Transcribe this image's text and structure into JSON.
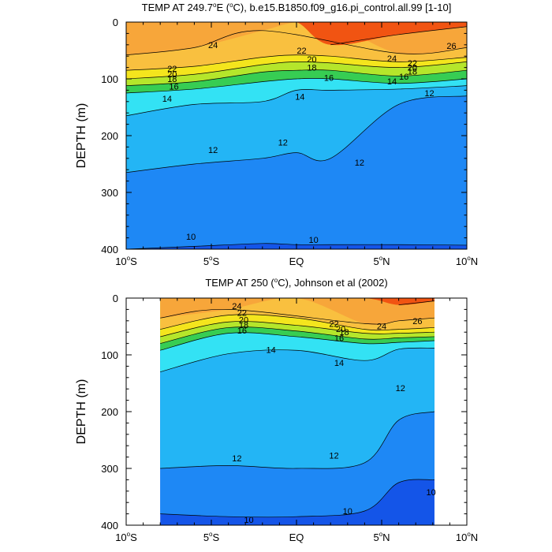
{
  "chart_data": [
    {
      "type": "contour",
      "title_parts": [
        "TEMP AT 249.7",
        "o",
        "E (",
        "o",
        "C), b.e15.B1850.f09_g16.pi_control.all.99 [1-10]"
      ],
      "ylabel": "DEPTH (m)",
      "xlim": [
        -10,
        10
      ],
      "ylim": [
        400,
        0
      ],
      "x_ticks": [
        {
          "value": -10,
          "num": "10",
          "deg": "o",
          "hemi": "S"
        },
        {
          "value": -5,
          "num": "5",
          "deg": "o",
          "hemi": "S"
        },
        {
          "value": 0,
          "num": "EQ",
          "deg": "",
          "hemi": ""
        },
        {
          "value": 5,
          "num": "5",
          "deg": "o",
          "hemi": "N"
        },
        {
          "value": 10,
          "num": "10",
          "deg": "o",
          "hemi": "N"
        }
      ],
      "y_ticks": [
        0,
        100,
        200,
        300,
        400
      ],
      "data_xrange": [
        -10,
        10
      ],
      "levels": [
        26,
        24,
        22,
        20,
        18,
        16,
        14,
        12,
        10
      ],
      "profiles": [
        {
          "x": -10,
          "depths": [
            null,
            58,
            85,
            100,
            112,
            125,
            165,
            265,
            400
          ]
        },
        {
          "x": -6,
          "depths": [
            null,
            45,
            78,
            92,
            105,
            118,
            145,
            250,
            395
          ]
        },
        {
          "x": -2,
          "depths": [
            null,
            15,
            62,
            75,
            88,
            105,
            140,
            240,
            390
          ]
        },
        {
          "x": 0,
          "depths": [
            null,
            null,
            58,
            70,
            85,
            100,
            120,
            230,
            392
          ]
        },
        {
          "x": 2,
          "depths": [
            40,
            null,
            60,
            72,
            85,
            100,
            120,
            240,
            392
          ]
        },
        {
          "x": 6,
          "depths": [
            22,
            55,
            70,
            80,
            95,
            108,
            118,
            145,
            392
          ]
        },
        {
          "x": 10,
          "depths": [
            8,
            45,
            62,
            70,
            85,
            100,
            112,
            130,
            393
          ]
        }
      ],
      "contour_labels": [
        {
          "text": "24",
          "x": -4.9,
          "y": 40
        },
        {
          "text": "22",
          "x": 0.3,
          "y": 50
        },
        {
          "text": "20",
          "x": 0.9,
          "y": 65
        },
        {
          "text": "18",
          "x": 0.9,
          "y": 80
        },
        {
          "text": "16",
          "x": 1.9,
          "y": 98
        },
        {
          "text": "14",
          "x": 0.2,
          "y": 131
        },
        {
          "text": "26",
          "x": 9.1,
          "y": 42
        },
        {
          "text": "24",
          "x": 5.6,
          "y": 64
        },
        {
          "text": "22",
          "x": 6.8,
          "y": 72
        },
        {
          "text": "20",
          "x": 6.8,
          "y": 80
        },
        {
          "text": "18",
          "x": 6.8,
          "y": 87
        },
        {
          "text": "16",
          "x": 6.3,
          "y": 96
        },
        {
          "text": "14",
          "x": 5.6,
          "y": 104
        },
        {
          "text": "12",
          "x": 7.8,
          "y": 125
        },
        {
          "text": "22",
          "x": -7.3,
          "y": 82
        },
        {
          "text": "20",
          "x": -7.3,
          "y": 92
        },
        {
          "text": "18",
          "x": -7.3,
          "y": 100
        },
        {
          "text": "16",
          "x": -7.2,
          "y": 113
        },
        {
          "text": "14",
          "x": -7.6,
          "y": 135
        },
        {
          "text": "12",
          "x": -4.9,
          "y": 225
        },
        {
          "text": "12",
          "x": -0.8,
          "y": 212
        },
        {
          "text": "12",
          "x": 3.7,
          "y": 247
        },
        {
          "text": "10",
          "x": -6.2,
          "y": 378
        },
        {
          "text": "10",
          "x": 1.0,
          "y": 383
        }
      ]
    },
    {
      "type": "contour",
      "title_parts": [
        "TEMP AT 250 (",
        "o",
        "C), Johnson et al (2002)"
      ],
      "ylabel": "DEPTH (m)",
      "xlim": [
        -10,
        10
      ],
      "ylim": [
        400,
        0
      ],
      "x_ticks": [
        {
          "value": -10,
          "num": "10",
          "deg": "o",
          "hemi": "S"
        },
        {
          "value": -5,
          "num": "5",
          "deg": "o",
          "hemi": "S"
        },
        {
          "value": 0,
          "num": "EQ",
          "deg": "",
          "hemi": ""
        },
        {
          "value": 5,
          "num": "5",
          "deg": "o",
          "hemi": "N"
        },
        {
          "value": 10,
          "num": "10",
          "deg": "o",
          "hemi": "N"
        }
      ],
      "y_ticks": [
        0,
        100,
        200,
        300,
        400
      ],
      "data_xrange": [
        -8,
        8.1
      ],
      "levels": [
        26,
        24,
        22,
        20,
        18,
        16,
        14,
        12,
        10
      ],
      "profiles": [
        {
          "x": -8,
          "depths": [
            null,
            35,
            55,
            68,
            80,
            92,
            130,
            300,
            380
          ]
        },
        {
          "x": -4,
          "depths": [
            null,
            20,
            30,
            42,
            52,
            62,
            98,
            295,
            385
          ]
        },
        {
          "x": 0,
          "depths": [
            null,
            null,
            35,
            48,
            58,
            68,
            92,
            300,
            385
          ]
        },
        {
          "x": 4,
          "depths": [
            null,
            45,
            55,
            62,
            72,
            80,
            110,
            290,
            375
          ]
        },
        {
          "x": 6,
          "depths": [
            12,
            40,
            55,
            62,
            70,
            78,
            90,
            215,
            325
          ]
        },
        {
          "x": 8.1,
          "depths": [
            5,
            35,
            52,
            60,
            68,
            75,
            88,
            200,
            320
          ]
        }
      ],
      "contour_labels": [
        {
          "text": "24",
          "x": -3.5,
          "y": 14
        },
        {
          "text": "22",
          "x": -3.2,
          "y": 26
        },
        {
          "text": "20",
          "x": -3.1,
          "y": 38
        },
        {
          "text": "18",
          "x": -3.1,
          "y": 47
        },
        {
          "text": "16",
          "x": -3.2,
          "y": 57
        },
        {
          "text": "14",
          "x": -1.5,
          "y": 91
        },
        {
          "text": "22",
          "x": 2.2,
          "y": 45
        },
        {
          "text": "20",
          "x": 2.6,
          "y": 54
        },
        {
          "text": "18",
          "x": 2.8,
          "y": 60
        },
        {
          "text": "16",
          "x": 2.5,
          "y": 70
        },
        {
          "text": "24",
          "x": 5.0,
          "y": 49
        },
        {
          "text": "26",
          "x": 7.1,
          "y": 40
        },
        {
          "text": "14",
          "x": 2.5,
          "y": 114
        },
        {
          "text": "12",
          "x": 6.1,
          "y": 158
        },
        {
          "text": "12",
          "x": -3.5,
          "y": 282
        },
        {
          "text": "12",
          "x": 2.2,
          "y": 277
        },
        {
          "text": "10",
          "x": 7.9,
          "y": 342
        },
        {
          "text": "10",
          "x": 3.0,
          "y": 375
        },
        {
          "text": "10",
          "x": -2.8,
          "y": 390
        }
      ]
    }
  ],
  "colors": {
    "fills": {
      "above26": "#f15412",
      "24_26": "#f48412",
      "22_24": "#f7a63a",
      "20_22": "#f9c03f",
      "18_20": "#f4e51d",
      "16_18": "#b5e62b",
      "14_16": "#37cd53",
      "12_14": "#33e2f4",
      "10_12": "#23b5f5",
      "below10": "#1e88f5",
      "deep": "#1455e8"
    },
    "contour_line": "#000000"
  }
}
